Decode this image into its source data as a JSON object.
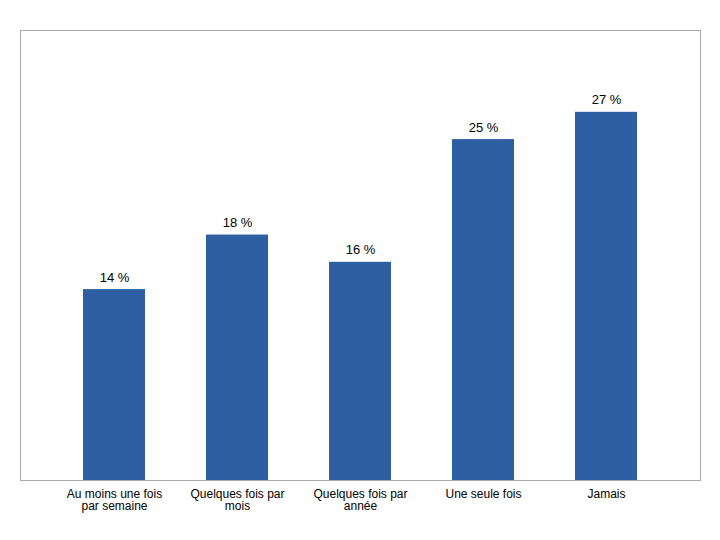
{
  "chart_data": {
    "type": "bar",
    "categories": [
      "Au moins une fois\npar semaine",
      "Quelques fois par\nmois",
      "Quelques fois par\nannée",
      "Une seule fois",
      "Jamais"
    ],
    "values": [
      14,
      18,
      16,
      25,
      27
    ],
    "value_labels": [
      "14 %",
      "18 %",
      "16 %",
      "25 %",
      "27 %"
    ],
    "color": "#2E5FA3",
    "ylim": [
      0,
      33
    ],
    "data_labels": true,
    "tick_labels": "x",
    "grid": false
  }
}
